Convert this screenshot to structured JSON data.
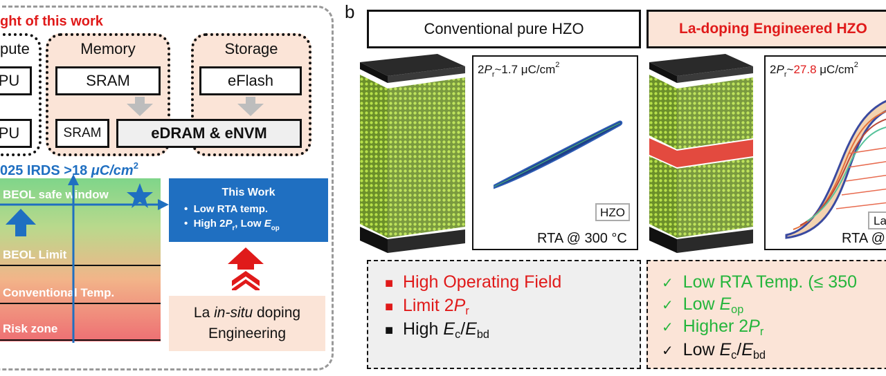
{
  "panel_a": {
    "title_partial": "ght of this work",
    "compute": {
      "label": "pute",
      "unit1": "PU",
      "unit2": "PU"
    },
    "memory": {
      "label": "Memory",
      "sram_top": "SRAM",
      "sram_small": "SRAM",
      "edram": "eDRAM & eNVM"
    },
    "storage": {
      "label": "Storage",
      "eflash": "eFlash"
    },
    "irds": {
      "text": "025 IRDS >18 ",
      "unit_mu": "μC/cm",
      "unit_exp": "2"
    },
    "zones": {
      "safe": "BEOL safe window",
      "limit": "BEOL Limit",
      "conventional": "Conventional Temp.",
      "risk": "Risk zone"
    },
    "this_work": {
      "title": "This Work",
      "bullet1": "Low RTA temp.",
      "bullet2_a": "High 2",
      "bullet2_p": "P",
      "bullet2_sub": "r",
      "bullet2_b": ", Low ",
      "bullet2_e": "E",
      "bullet2_esub": "op"
    },
    "la_box": {
      "line1_a": "La ",
      "line1_i": "in-situ",
      "line1_b": " doping",
      "line2": "Engineering"
    }
  },
  "panel_b": {
    "label": "b",
    "left_header": "Conventional pure HZO",
    "right_header": "La-doping Engineered HZO",
    "left_plot": {
      "pr_prefix": "2",
      "pr_p": "P",
      "pr_sub": "r",
      "pr_value": "~1.7 μC/cm",
      "pr_exp": "2",
      "legend": "HZO",
      "rta": "RTA @ 300 °C"
    },
    "right_plot": {
      "pr_prefix": "2",
      "pr_p": "P",
      "pr_sub": "r",
      "pr_tilde": "~",
      "pr_value": "27.8",
      "pr_unit": " μC/cm",
      "pr_exp": "2",
      "legend": "La",
      "rta": "RTA @"
    },
    "left_list": [
      {
        "marker": "■",
        "text": "High Operating Field"
      },
      {
        "marker": "■",
        "text_a": "Limit 2",
        "p": "P",
        "sub": "r"
      },
      {
        "marker": "■",
        "text_a": "High ",
        "e": "E",
        "sub1": "c",
        "slash": "/",
        "e2": "E",
        "sub2": "bd"
      }
    ],
    "right_list": [
      {
        "marker": "✓",
        "text": "Low RTA Temp. (≤ 350"
      },
      {
        "marker": "✓",
        "text_a": "Low ",
        "e": "E",
        "sub": "op"
      },
      {
        "marker": "✓",
        "text_a": "Higher 2",
        "p": "P",
        "sub": "r"
      },
      {
        "marker": "✓",
        "text_a": "Low ",
        "e": "E",
        "sub1": "c",
        "slash": "/",
        "e2": "E",
        "sub2": "bd"
      }
    ]
  },
  "colors": {
    "accent_red": "#e01a1a",
    "accent_blue": "#1f6fc1",
    "accent_green": "#25b53c",
    "peach": "#fbe4d7"
  }
}
